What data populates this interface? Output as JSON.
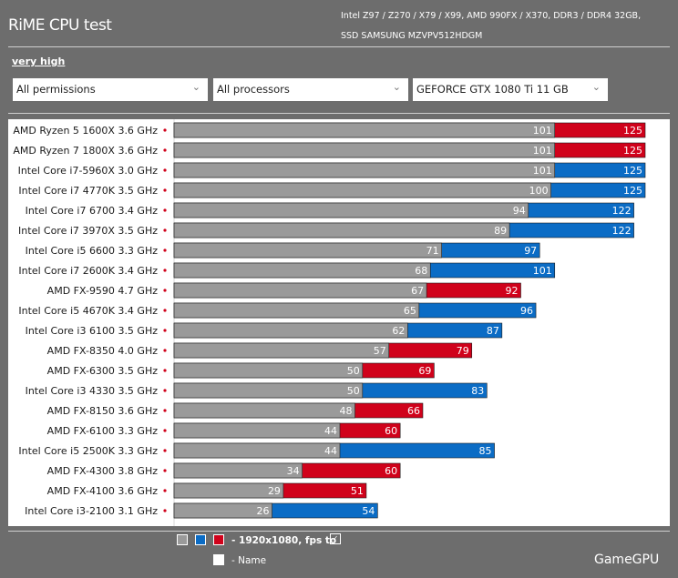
{
  "header": {
    "title": "RiME CPU test",
    "spec_line1": "Intel Z97 / Z270 / X79 / X99, AMD 990FX / X370, DDR3 / DDR4 32GB,",
    "spec_line2": "SSD SAMSUNG MZVPV512HDGM"
  },
  "quality_link": "very high",
  "filters": {
    "permissions": "All permissions",
    "processors": "All processors",
    "gpu": "GEFORCE GTX 1080 Ti 11 GB"
  },
  "legend": {
    "series_label": "- 1920x1080, fps to",
    "name_label": "- Name",
    "colors": {
      "gray": "#9a9a9a",
      "blue": "#0b6cc5",
      "red": "#d0021b"
    }
  },
  "brand": "GameGPU",
  "chart_data": {
    "type": "bar",
    "orientation": "horizontal",
    "categories": [
      "AMD Ryzen 5 1600X 3.6 GHz",
      "AMD Ryzen 7 1800X 3.6 GHz",
      "Intel Core i7-5960X 3.0 GHz",
      "Intel Core i7 4770K 3.5 GHz",
      "Intel Core i7 6700 3.4 GHz",
      "Intel Core i7 3970X 3.5 GHz",
      "Intel Core i5 6600 3.3 GHz",
      "Intel Core i7 2600K 3.4 GHz",
      "AMD FX-9590 4.7 GHz",
      "Intel Core i5 4670K 3.4 GHz",
      "Intel Core i3 6100 3.5 GHz",
      "AMD FX-8350 4.0 GHz",
      "AMD FX-6300 3.5 GHz",
      "Intel Core i3 4330 3.5 GHz",
      "AMD FX-8150 3.6 GHz",
      "AMD FX-6100 3.3 GHz",
      "Intel Core i5 2500K 3.3 GHz",
      "AMD FX-4300 3.8 GHz",
      "AMD FX-4100 3.6 GHz",
      "Intel Core i3-2100 3.1 GHz"
    ],
    "series": [
      {
        "values": [
          101,
          101,
          101,
          100,
          94,
          89,
          71,
          68,
          67,
          65,
          62,
          57,
          50,
          50,
          48,
          44,
          44,
          34,
          29,
          26
        ],
        "color": "#9a9a9a"
      },
      {
        "values": [
          125,
          125,
          125,
          125,
          122,
          122,
          97,
          101,
          92,
          96,
          87,
          79,
          69,
          83,
          66,
          60,
          85,
          60,
          51,
          54
        ],
        "colors": [
          "#d0021b",
          "#d0021b",
          "#0b6cc5",
          "#0b6cc5",
          "#0b6cc5",
          "#0b6cc5",
          "#0b6cc5",
          "#0b6cc5",
          "#d0021b",
          "#0b6cc5",
          "#0b6cc5",
          "#d0021b",
          "#d0021b",
          "#0b6cc5",
          "#d0021b",
          "#d0021b",
          "#0b6cc5",
          "#d0021b",
          "#d0021b",
          "#0b6cc5"
        ]
      }
    ],
    "xlim": [
      0,
      125
    ],
    "grid": false
  }
}
